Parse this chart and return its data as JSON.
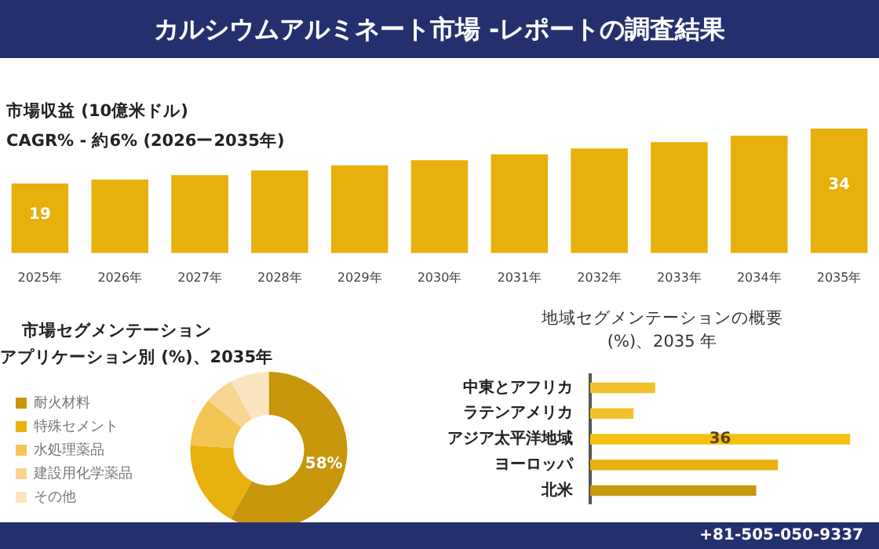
{
  "chart_data": [
    {
      "type": "bar",
      "title": "カルシウムアルミネート市場 -レポートの調査結果",
      "subtitle": "市場収益 (10億米ドル)",
      "annotations": [
        "CAGR% - 約6% (2026ー2035年)"
      ],
      "categories": [
        "2025年",
        "2026年",
        "2027年",
        "2028年",
        "2029年",
        "2030年",
        "2031年",
        "2032年",
        "2033年",
        "2034年",
        "2035年"
      ],
      "values": [
        19,
        20.1,
        21.3,
        22.6,
        24.0,
        25.4,
        27.0,
        28.6,
        30.3,
        32.1,
        34
      ],
      "value_labels": [
        "19",
        null,
        null,
        null,
        null,
        null,
        null,
        null,
        null,
        null,
        "34"
      ],
      "color": "#e8b00a",
      "legend": false
    },
    {
      "type": "donut",
      "title": "市場セグメンテーション",
      "subtitle": "アプリケーション別 (%)、2035年",
      "annotations": [
        "+81-505-050-9337"
      ],
      "categories": [
        "耐火材料",
        "特殊セメント",
        "水処理薬品",
        "建設用化学薬品",
        "その他"
      ],
      "values": [
        58,
        18,
        10,
        6,
        8
      ],
      "value_labels": [
        "58%",
        null,
        null,
        null,
        null
      ],
      "colors": [
        "#c8960a",
        "#e8b10e",
        "#f3c552",
        "#f7d590",
        "#fbe5c0"
      ],
      "legend": "left"
    },
    {
      "type": "bar",
      "orientation": "horizontal",
      "title": "地域セグメンテーションの概要 (%)、2035 年",
      "categories": [
        "中東とアフリカ",
        "ラテンアメリカ",
        "アジア太平洋地域",
        "ヨーロッパ",
        "北米"
      ],
      "values": [
        9,
        6,
        36,
        26,
        23
      ],
      "value_labels": [
        null,
        null,
        "36",
        null,
        null
      ],
      "colors": [
        "#f2c12a",
        "#f2c12a",
        "#f5c010",
        "#e8b010",
        "#c8980e"
      ],
      "legend": false
    }
  ]
}
